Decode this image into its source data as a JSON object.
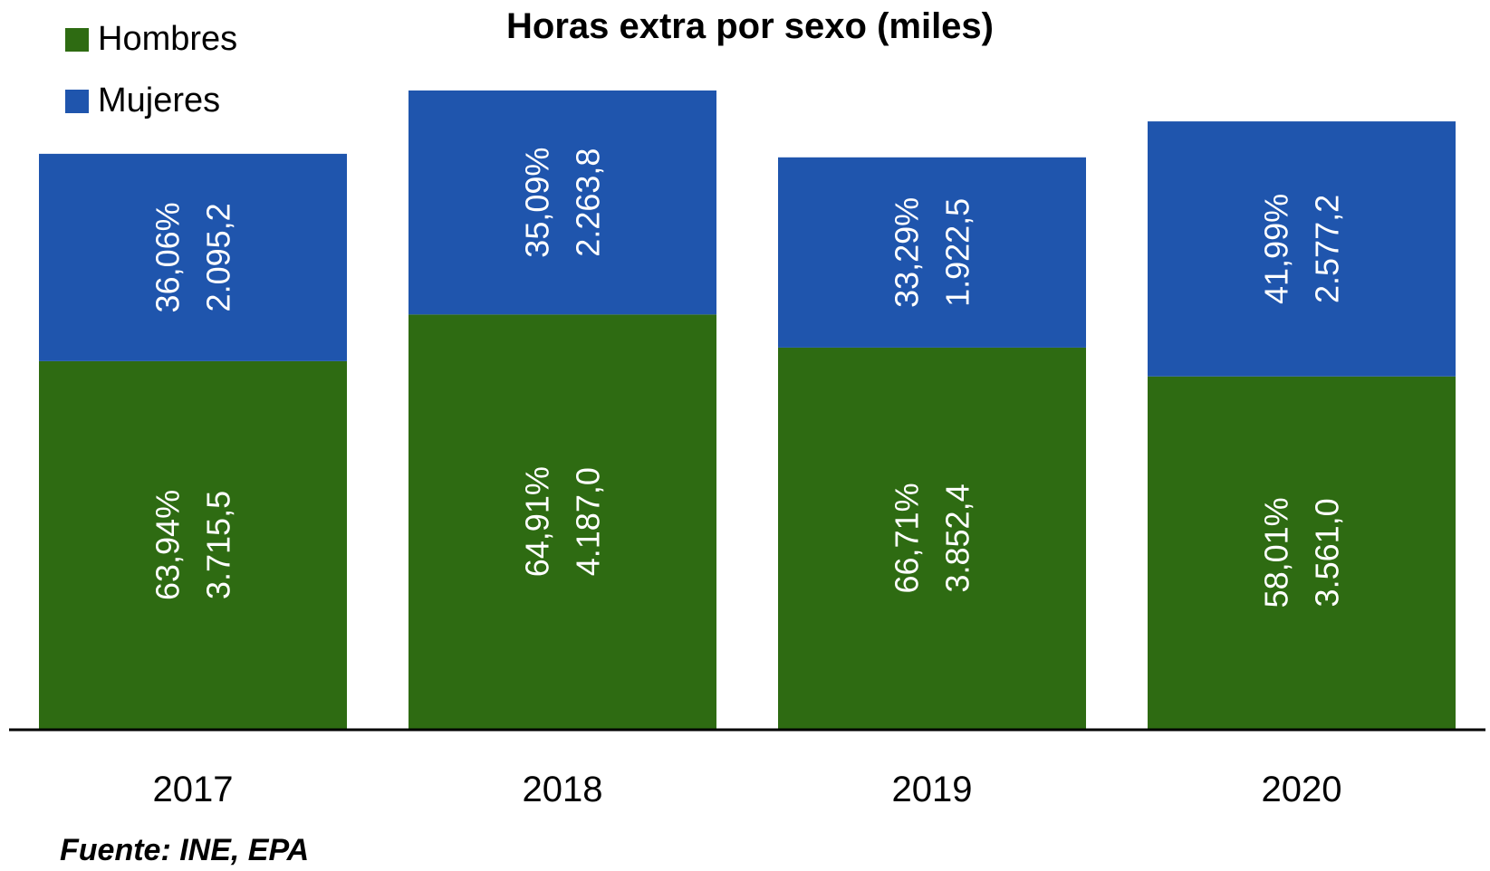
{
  "chart_data": {
    "type": "bar",
    "stacked": true,
    "title": "Horas extra por sexo (miles)",
    "categories": [
      "2017",
      "2018",
      "2019",
      "2020"
    ],
    "series": [
      {
        "name": "Hombres",
        "color": "#2e6b12",
        "values": [
          3715.5,
          4187.0,
          3852.4,
          3561.0
        ],
        "value_labels": [
          "3.715,5",
          "4.187,0",
          "3.852,4",
          "3.561,0"
        ],
        "pct_labels": [
          "63,94%",
          "64,91%",
          "66,71%",
          "58,01%"
        ]
      },
      {
        "name": "Mujeres",
        "color": "#1f55ad",
        "values": [
          2095.2,
          2263.8,
          1922.5,
          2577.2
        ],
        "value_labels": [
          "2.095,2",
          "2.263,8",
          "1.922,5",
          "2.577,2"
        ],
        "pct_labels": [
          "36,06%",
          "35,09%",
          "33,29%",
          "41,99%"
        ]
      }
    ],
    "ylim": [
      0,
      6450
    ],
    "xlabel": "",
    "ylabel": "",
    "grid": false,
    "legend": "top-left"
  },
  "source": "Fuente: INE, EPA"
}
